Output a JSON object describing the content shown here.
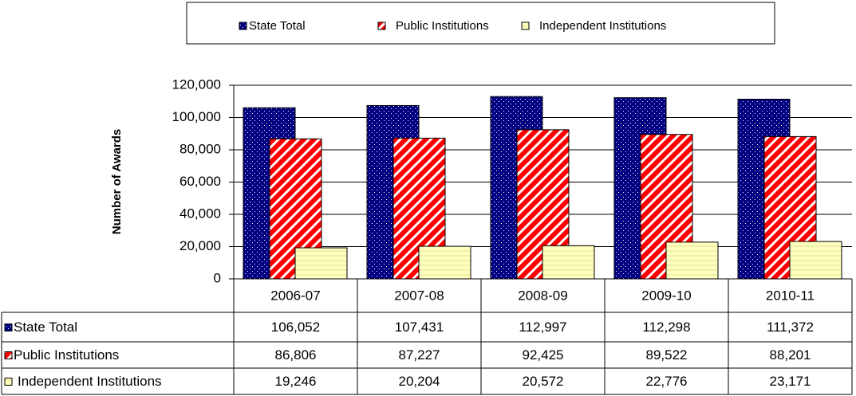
{
  "chart_data": {
    "type": "bar",
    "y_label": "Number of Awards",
    "categories": [
      "2006-07",
      "2007-08",
      "2008-09",
      "2009-10",
      "2010-11"
    ],
    "series": [
      {
        "name": "State Total",
        "color": "#000080",
        "values": [
          106052,
          107431,
          112997,
          112298,
          111372
        ],
        "value_labels": [
          "106,052",
          "107,431",
          "112,997",
          "112,298",
          "111,372"
        ]
      },
      {
        "name": "Public Institutions",
        "color": "#ff0000",
        "values": [
          86806,
          87227,
          92425,
          89522,
          88201
        ],
        "value_labels": [
          "86,806",
          "87,227",
          "92,425",
          "89,522",
          "88,201"
        ]
      },
      {
        "name": "Independent Institutions",
        "color": "#ffffc0",
        "values": [
          19246,
          20204,
          20572,
          22776,
          23171
        ],
        "value_labels": [
          "19,246",
          "20,204",
          "20,572",
          "22,776",
          "23,171"
        ]
      }
    ],
    "ylim": [
      0,
      120000
    ],
    "yticks": [
      0,
      {
        "value": 20000,
        "label": "20,000"
      },
      {
        "value": 40000,
        "label": "40,000"
      },
      {
        "value": 60000,
        "label": "60,000"
      },
      {
        "value": 80000,
        "label": "80,000"
      },
      {
        "value": 100000,
        "label": "100,000"
      },
      {
        "value": 120000,
        "label": "120,000"
      }
    ],
    "grid": true,
    "legend": "top"
  }
}
